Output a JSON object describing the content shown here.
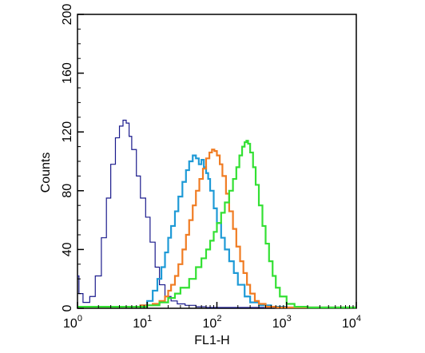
{
  "chart_data": {
    "type": "line",
    "title": "",
    "xlabel": "FL1-H",
    "ylabel": "Counts",
    "x_scale": "log",
    "xlim": [
      1,
      10000
    ],
    "ylim": [
      0,
      200
    ],
    "x_ticks": [
      {
        "base": "10",
        "exp": "0",
        "value": 1
      },
      {
        "base": "10",
        "exp": "1",
        "value": 10
      },
      {
        "base": "10",
        "exp": "2",
        "value": 100
      },
      {
        "base": "10",
        "exp": "3",
        "value": 1000
      },
      {
        "base": "10",
        "exp": "4",
        "value": 10000
      }
    ],
    "y_ticks": [
      "0",
      "40",
      "80",
      "120",
      "160",
      "200"
    ],
    "grid": false,
    "legend": "none",
    "series": [
      {
        "color": "#1a1a8c",
        "stroke_width": 1.2,
        "x": [
          1,
          1.05,
          1.2,
          1.5,
          1.8,
          2.2,
          2.6,
          3.0,
          3.5,
          4.0,
          4.5,
          5.0,
          5.5,
          6.0,
          7.0,
          8.0,
          9.5,
          11,
          13,
          15,
          18,
          22,
          27,
          35,
          50,
          70,
          100,
          150,
          300,
          1000,
          10000
        ],
        "values": [
          22,
          10,
          4,
          8,
          22,
          48,
          75,
          98,
          116,
          124,
          128,
          126,
          117,
          108,
          90,
          75,
          62,
          45,
          28,
          16,
          8,
          5,
          3,
          2,
          1,
          0.5,
          0.3,
          0,
          0,
          0,
          0
        ]
      },
      {
        "color": "#1e9ad6",
        "stroke_width": 2.2,
        "x": [
          1,
          5,
          8,
          10,
          12,
          14,
          16,
          18,
          20,
          22,
          25,
          28,
          32,
          36,
          40,
          45,
          50,
          55,
          60,
          65,
          70,
          75,
          80,
          90,
          100,
          115,
          130,
          150,
          175,
          200,
          250,
          300,
          400,
          600,
          1000,
          10000
        ],
        "values": [
          1,
          1,
          2,
          5,
          12,
          20,
          28,
          38,
          48,
          56,
          66,
          76,
          86,
          94,
          100,
          104,
          102,
          98,
          101,
          96,
          92,
          88,
          80,
          68,
          58,
          48,
          40,
          32,
          24,
          16,
          8,
          4,
          2,
          1,
          0,
          0
        ]
      },
      {
        "color": "#f07c23",
        "stroke_width": 2.2,
        "x": [
          1,
          8,
          12,
          15,
          18,
          20,
          22,
          25,
          28,
          32,
          36,
          40,
          45,
          50,
          56,
          63,
          70,
          78,
          85,
          92,
          100,
          110,
          120,
          135,
          150,
          170,
          190,
          215,
          240,
          270,
          300,
          350,
          400,
          500,
          700,
          1000,
          10000
        ],
        "values": [
          1,
          2,
          3,
          5,
          8,
          12,
          16,
          22,
          30,
          40,
          50,
          60,
          70,
          80,
          88,
          95,
          102,
          106,
          108,
          107,
          104,
          98,
          90,
          78,
          66,
          54,
          42,
          32,
          24,
          16,
          10,
          5,
          3,
          1,
          0.5,
          0,
          0
        ]
      },
      {
        "color": "#33e033",
        "stroke_width": 2.2,
        "x": [
          1,
          10,
          15,
          20,
          25,
          30,
          40,
          50,
          60,
          70,
          80,
          90,
          100,
          115,
          130,
          150,
          170,
          190,
          210,
          230,
          250,
          265,
          280,
          300,
          330,
          360,
          400,
          450,
          500,
          560,
          630,
          700,
          800,
          1000,
          1300,
          2000,
          10000
        ],
        "values": [
          1,
          2,
          4,
          7,
          10,
          14,
          20,
          28,
          34,
          40,
          46,
          52,
          58,
          65,
          72,
          80,
          88,
          96,
          104,
          110,
          113,
          114,
          112,
          106,
          96,
          84,
          70,
          56,
          44,
          32,
          22,
          14,
          8,
          3,
          1,
          0,
          0
        ]
      }
    ]
  }
}
